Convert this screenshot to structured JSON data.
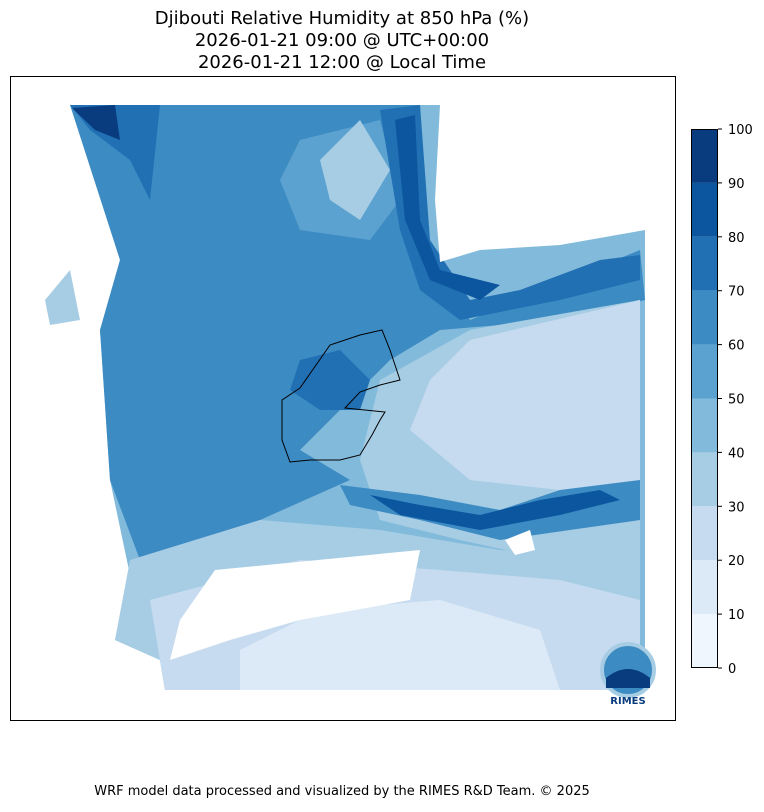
{
  "title": [
    "Djibouti Relative Humidity at 850 hPa (%)",
    "2026-01-21 09:00 @ UTC+00:00",
    "2026-01-21 12:00 @ Local Time"
  ],
  "colorbar": {
    "ticks": [
      0,
      10,
      20,
      30,
      40,
      50,
      60,
      70,
      80,
      90,
      100
    ],
    "colors": [
      "#f0f6fd",
      "#dceaf7",
      "#c6dbef",
      "#a7cde4",
      "#82badb",
      "#5ca2d0",
      "#3d8bc3",
      "#2270b4",
      "#0c56a0",
      "#083c7e"
    ]
  },
  "logo": "RIMES",
  "footer": "WRF model data processed and visualized by the RIMES R&D Team. © 2025"
}
